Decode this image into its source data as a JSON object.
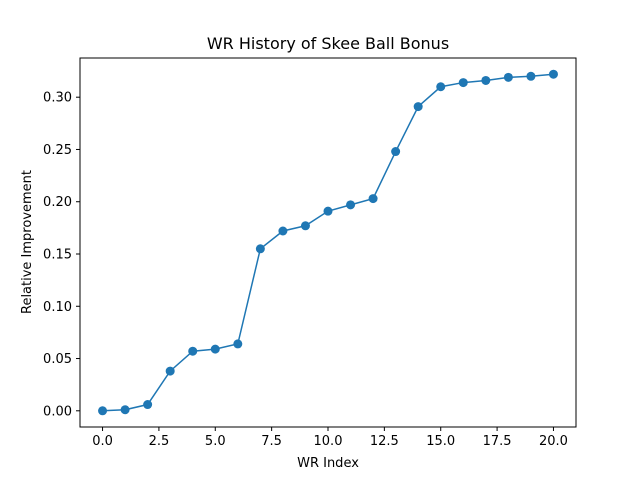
{
  "chart_data": {
    "type": "line",
    "title": "WR History of Skee Ball Bonus",
    "xlabel": "WR Index",
    "ylabel": "Relative Improvement",
    "xlim": [
      -1.0,
      21.0
    ],
    "ylim": [
      -0.0155,
      0.3375
    ],
    "xticks": [
      0,
      2.5,
      5,
      7.5,
      10,
      12.5,
      15,
      17.5,
      20
    ],
    "xtick_labels": [
      "0.0",
      "2.5",
      "5.0",
      "7.5",
      "10.0",
      "12.5",
      "15.0",
      "17.5",
      "20.0"
    ],
    "yticks": [
      0,
      0.05,
      0.1,
      0.15,
      0.2,
      0.25,
      0.3
    ],
    "ytick_labels": [
      "0.00",
      "0.05",
      "0.10",
      "0.15",
      "0.20",
      "0.25",
      "0.30"
    ],
    "grid": false,
    "series": [
      {
        "color": "#1f77b4",
        "marker": "circle",
        "x": [
          0,
          1,
          2,
          3,
          4,
          5,
          6,
          7,
          8,
          9,
          10,
          11,
          12,
          13,
          14,
          15,
          16,
          17,
          18,
          19,
          20
        ],
        "y": [
          0.0,
          0.001,
          0.006,
          0.038,
          0.057,
          0.059,
          0.064,
          0.155,
          0.172,
          0.177,
          0.191,
          0.197,
          0.203,
          0.248,
          0.291,
          0.31,
          0.314,
          0.316,
          0.319,
          0.32,
          0.322
        ]
      }
    ]
  }
}
